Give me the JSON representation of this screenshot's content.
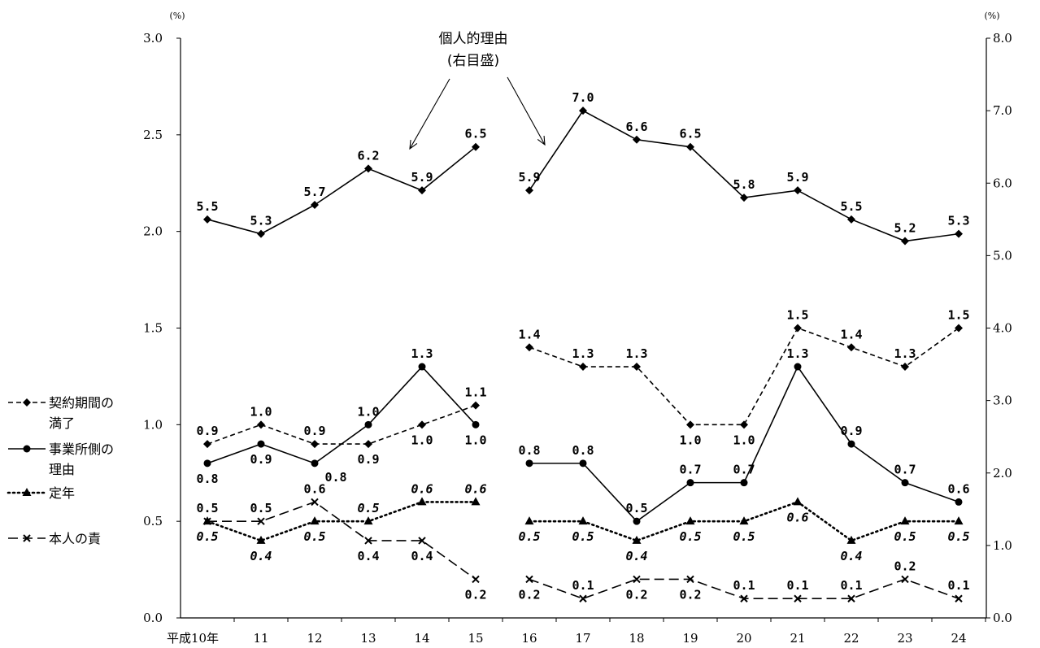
{
  "chart_data": {
    "type": "line",
    "categories": [
      "平成10年",
      "11",
      "12",
      "13",
      "14",
      "15",
      "16",
      "17",
      "18",
      "19",
      "20",
      "21",
      "22",
      "23",
      "24"
    ],
    "y_left": {
      "unit": "(%)",
      "range": [
        0,
        3.0
      ],
      "ticks": [
        "0.0",
        "0.5",
        "1.0",
        "1.5",
        "2.0",
        "2.5",
        "3.0"
      ]
    },
    "y_right": {
      "unit": "(%)",
      "range": [
        0,
        8.0
      ],
      "ticks": [
        "0.0",
        "1.0",
        "2.0",
        "3.0",
        "4.0",
        "5.0",
        "6.0",
        "7.0",
        "8.0"
      ]
    },
    "series": [
      {
        "name": "個人的理由",
        "axis": "right",
        "style": "solid",
        "marker": "diamond",
        "values": [
          5.5,
          5.3,
          5.7,
          6.2,
          5.9,
          6.5,
          5.9,
          7.0,
          6.6,
          6.5,
          5.8,
          5.9,
          5.5,
          5.2,
          5.3
        ],
        "labels": [
          "5.5",
          "5.3",
          "5.7",
          "6.2",
          "5.9",
          "6.5",
          "5.9",
          "7.0",
          "6.6",
          "6.5",
          "5.8",
          "5.9",
          "5.5",
          "5.2",
          "5.3"
        ],
        "label_pos": [
          "above",
          "above",
          "above",
          "above",
          "above",
          "above",
          "above",
          "above",
          "above",
          "above",
          "above",
          "above",
          "above",
          "above",
          "above"
        ]
      },
      {
        "name": "契約期間の満了",
        "axis": "left",
        "style": "dashed",
        "marker": "diamond",
        "values": [
          0.9,
          1.0,
          0.9,
          0.9,
          1.0,
          1.1,
          1.4,
          1.3,
          1.3,
          1.0,
          1.0,
          1.5,
          1.4,
          1.3,
          1.5
        ],
        "labels": [
          "0.9",
          "1.0",
          "0.9",
          "0.9",
          "1.0",
          "1.1",
          "1.4",
          "1.3",
          "1.3",
          "1.0",
          "1.0",
          "1.5",
          "1.4",
          "1.3",
          "1.5"
        ],
        "label_pos": [
          "above",
          "above",
          "above",
          "below",
          "below",
          "above",
          "above",
          "above",
          "above",
          "below",
          "below",
          "above",
          "above",
          "above",
          "above"
        ]
      },
      {
        "name": "事業所側の理由",
        "axis": "left",
        "style": "solid",
        "marker": "circle",
        "values": [
          0.8,
          0.9,
          0.8,
          1.0,
          1.3,
          1.0,
          0.8,
          0.8,
          0.5,
          0.7,
          0.7,
          1.3,
          0.9,
          0.7,
          0.6
        ],
        "labels": [
          "0.8",
          "0.9",
          "0.8",
          "1.0",
          "1.3",
          "1.0",
          "0.8",
          "0.8",
          "0.5",
          "0.7",
          "0.7",
          "1.3",
          "0.9",
          "0.7",
          "0.6"
        ],
        "label_pos": [
          "below",
          "below",
          "below-right",
          "above",
          "above",
          "below",
          "above",
          "above",
          "above",
          "above",
          "above",
          "above",
          "above",
          "above",
          "above"
        ]
      },
      {
        "name": "定年",
        "axis": "left",
        "style": "dotted",
        "marker": "triangle",
        "values": [
          0.5,
          0.4,
          0.5,
          0.5,
          0.6,
          0.6,
          0.5,
          0.5,
          0.4,
          0.5,
          0.5,
          0.6,
          0.4,
          0.5,
          0.5
        ],
        "labels": [
          "0.5",
          "0.4",
          "0.5",
          "0.5",
          "0.6",
          "0.6",
          "0.5",
          "0.5",
          "0.4",
          "0.5",
          "0.5",
          "0.6",
          "0.4",
          "0.5",
          "0.5"
        ],
        "label_pos": [
          "below",
          "below",
          "below",
          "above",
          "above",
          "above",
          "below",
          "below",
          "below",
          "below",
          "below",
          "below",
          "below",
          "below",
          "below"
        ]
      },
      {
        "name": "本人の責",
        "axis": "left",
        "style": "longdash",
        "marker": "x",
        "values": [
          0.5,
          0.5,
          0.6,
          0.4,
          0.4,
          0.2,
          0.2,
          0.1,
          0.2,
          0.2,
          0.1,
          0.1,
          0.1,
          0.2,
          0.1
        ],
        "labels": [
          "0.5",
          "0.5",
          "0.6",
          "0.4",
          "0.4",
          "0.2",
          "0.2",
          "0.1",
          "0.2",
          "0.2",
          "0.1",
          "0.1",
          "0.1",
          "0.2",
          "0.1"
        ],
        "label_pos": [
          "above",
          "above",
          "above",
          "below",
          "below",
          "below",
          "below",
          "above",
          "below",
          "below",
          "above",
          "above",
          "above",
          "above",
          "above"
        ]
      }
    ],
    "annotation": {
      "lines": [
        "個人的理由",
        "(右目盛)"
      ]
    },
    "legend": [
      {
        "lines": [
          "契約期間の",
          "満了"
        ],
        "series": 1
      },
      {
        "lines": [
          "事業所側の",
          "理由"
        ],
        "series": 2
      },
      {
        "lines": [
          "定年"
        ],
        "series": 3
      },
      {
        "lines": [
          "本人の責"
        ],
        "series": 4
      }
    ],
    "grid": false,
    "legend_position": "left"
  }
}
